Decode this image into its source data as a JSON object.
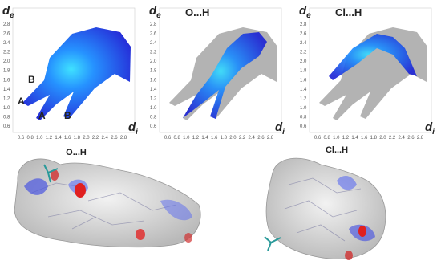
{
  "axes": {
    "y_label": {
      "base": "d",
      "sub": "e"
    },
    "x_label": {
      "base": "d",
      "sub": "i"
    },
    "ticks": [
      "0.6",
      "0.8",
      "1.0",
      "1.2",
      "1.4",
      "1.6",
      "1.8",
      "2.0",
      "2.2",
      "2.4",
      "2.6",
      "2.8"
    ]
  },
  "plots": [
    {
      "annotations": [
        "B",
        "A",
        "A",
        "B"
      ]
    },
    {
      "title": "O...H"
    },
    {
      "title": "Cl...H"
    }
  ],
  "surfaces": [
    {
      "label": "O...H"
    },
    {
      "label": "Cl...H"
    }
  ]
}
